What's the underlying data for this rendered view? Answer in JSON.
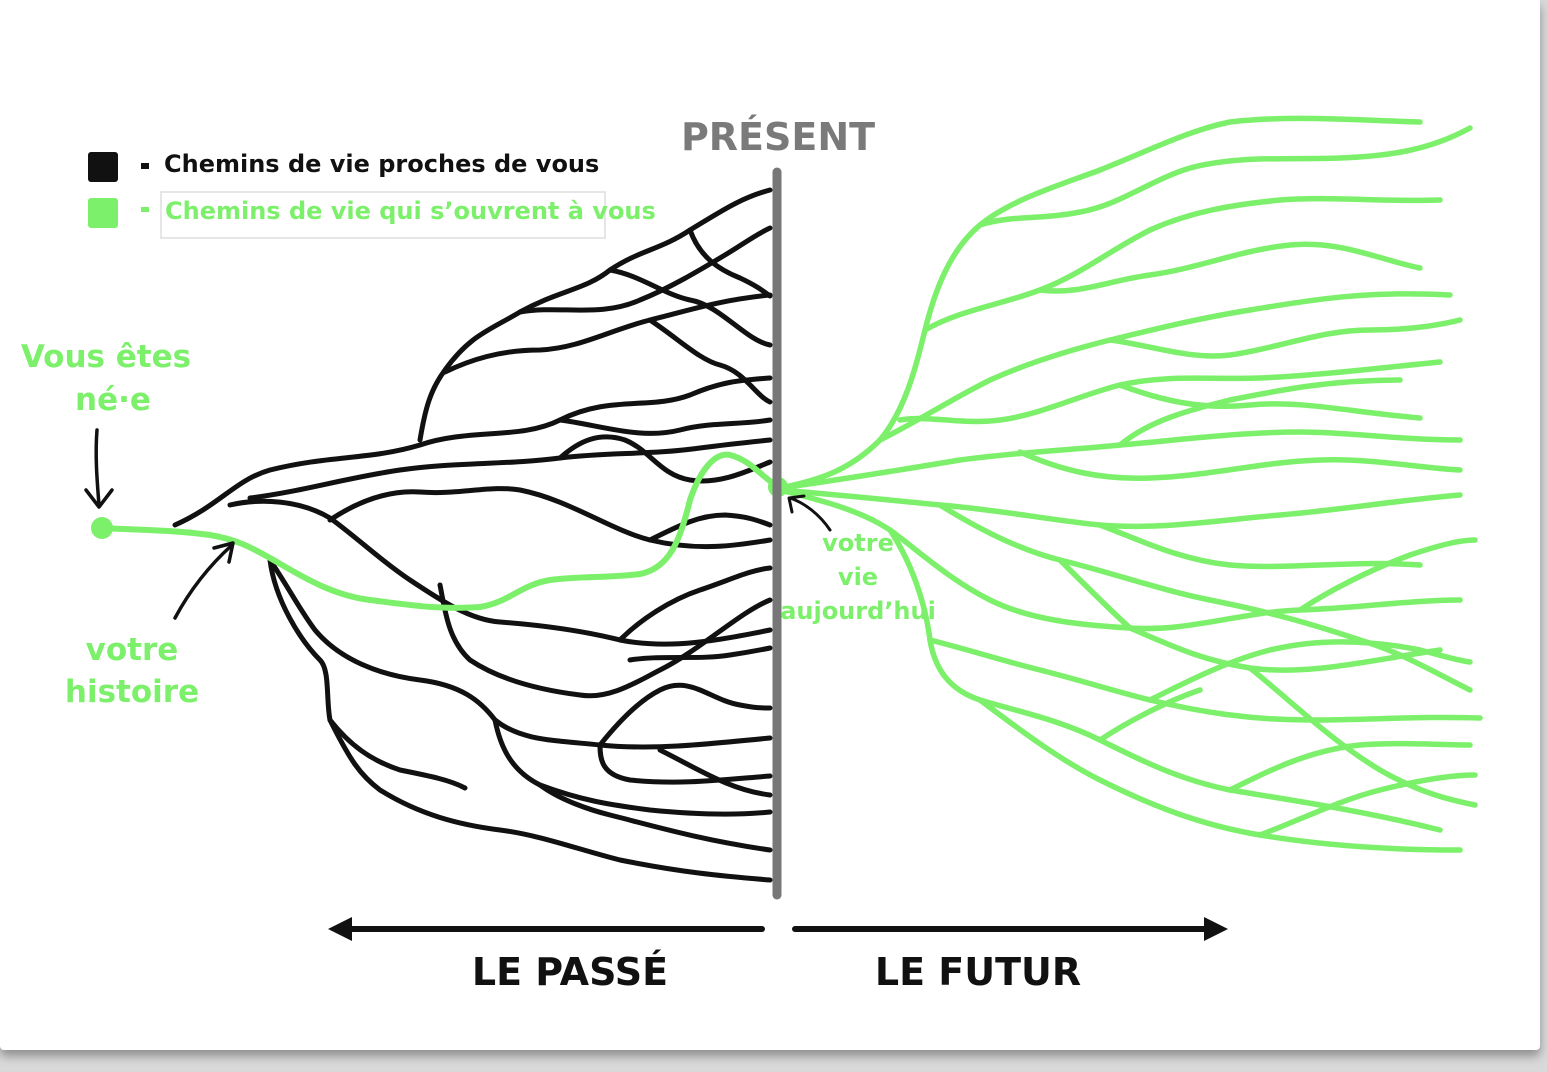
{
  "diagram": {
    "present_label": "PRÉSENT",
    "past_label": "LE PASSÉ",
    "future_label": "LE FUTUR",
    "legend": [
      {
        "text": "Chemins de vie proches de vous",
        "color": "#111111"
      },
      {
        "text": "Chemins de vie qui s’ouvrent à vous",
        "color": "#7cf06a"
      }
    ],
    "annotations": {
      "born_line1": "Vous êtes",
      "born_line2": "né·e",
      "history_line1": "votre",
      "history_line2": "histoire",
      "today_line1": "votre",
      "today_line2": "vie",
      "today_line3": "aujourd’hui"
    },
    "colors": {
      "past_paths": "#111111",
      "future_paths": "#7cf06a",
      "present_line": "#777777"
    }
  }
}
